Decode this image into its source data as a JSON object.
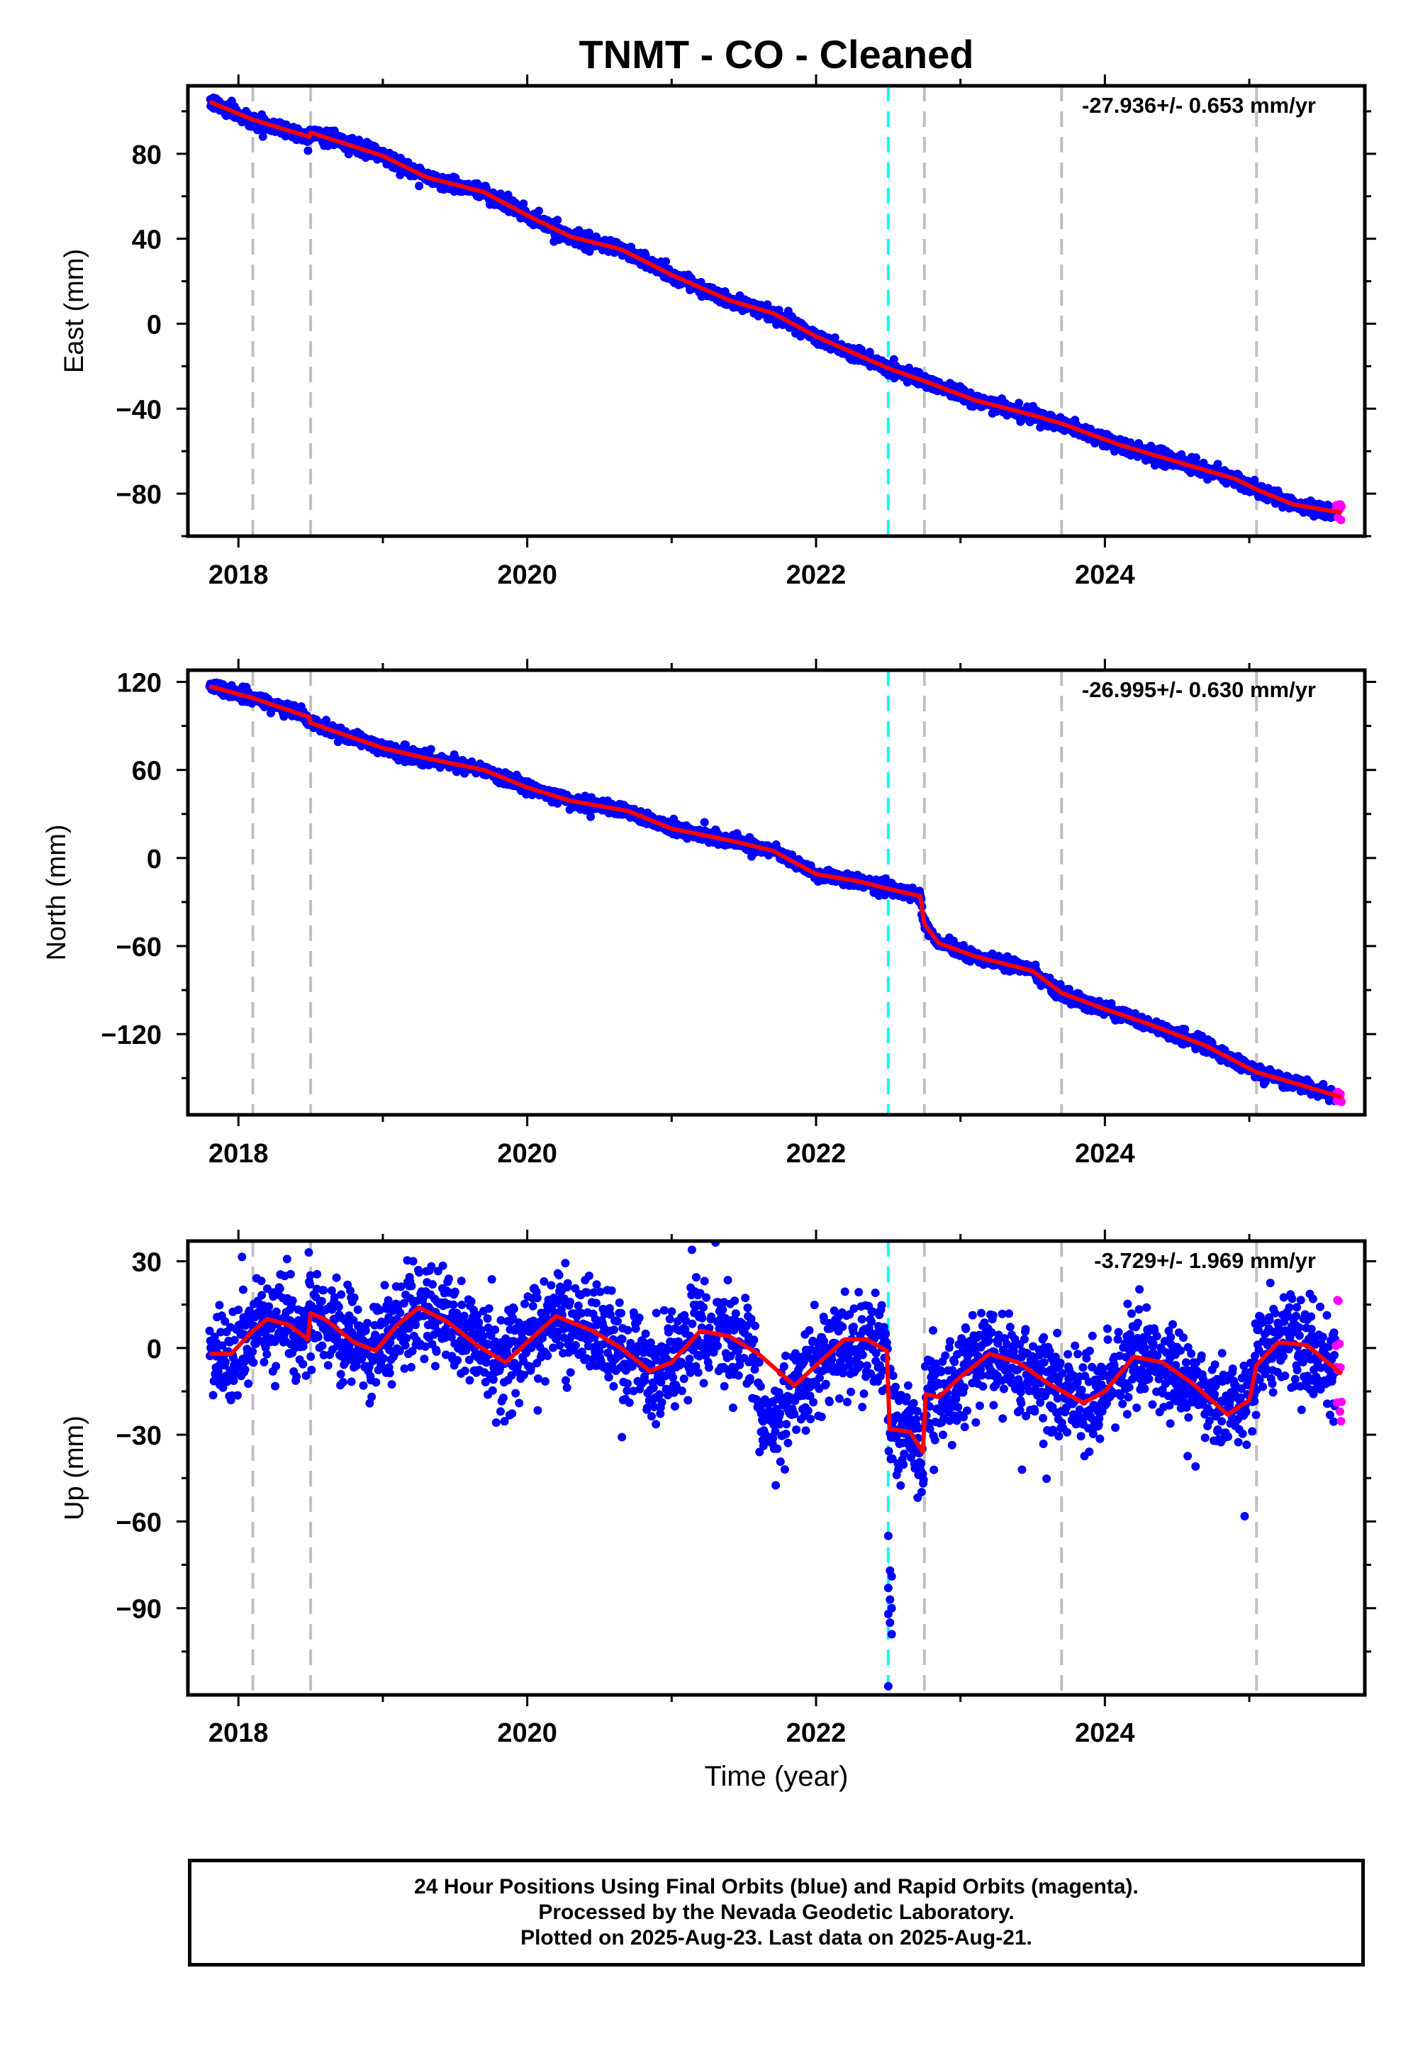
{
  "chart_data": {
    "type": "scatter",
    "title": "TNMT  - CO - Cleaned",
    "x_range": [
      2017.65,
      2025.8
    ],
    "x_ticks": [
      2018,
      2020,
      2022,
      2024
    ],
    "x_minor_ticks": [
      2017.0,
      2019.0,
      2021.0,
      2023.0,
      2025.0
    ],
    "x_tick_labels": [
      "2018",
      "2020",
      "2022",
      "2024"
    ],
    "xlabel": "Time (year)",
    "event_lines": {
      "gray_dashed": [
        2018.1,
        2018.5,
        2022.75,
        2023.7,
        2025.05
      ],
      "cyan_dashed": [
        2022.5
      ]
    },
    "colors": {
      "final_orbits": "#0000ff",
      "rapid_orbits": "#ff00ff",
      "model_fit": "#ff0000",
      "equipment_change": "#c0c0c0",
      "earthquake": "#00ffff",
      "frame": "#000000"
    },
    "data_span": {
      "start": 2017.8,
      "end_final": 2025.6,
      "end_rapid": 2025.64
    },
    "panels": [
      {
        "component": "east",
        "ylabel": "East (mm)",
        "y_range": [
          -100,
          112
        ],
        "y_ticks": [
          80,
          40,
          0,
          -40,
          -80
        ],
        "y_tick_labels": [
          "80",
          "40",
          "0",
          "−40",
          "−80"
        ],
        "y_minor_ticks": [
          100,
          60,
          20,
          -20,
          -60,
          -100
        ],
        "rate_label": "-27.936+/- 0.653 mm/yr",
        "scatter_sd": 1.6,
        "model": [
          [
            2017.8,
            104.5
          ],
          [
            2018.1,
            96
          ],
          [
            2018.49,
            88
          ],
          [
            2018.5,
            90
          ],
          [
            2019.0,
            79
          ],
          [
            2019.3,
            69
          ],
          [
            2019.7,
            62
          ],
          [
            2020.0,
            51
          ],
          [
            2020.3,
            41
          ],
          [
            2020.65,
            35
          ],
          [
            2021.0,
            23
          ],
          [
            2021.4,
            11
          ],
          [
            2021.7,
            5
          ],
          [
            2022.0,
            -6
          ],
          [
            2022.4,
            -18
          ],
          [
            2022.5,
            -21
          ],
          [
            2022.75,
            -27
          ],
          [
            2023.1,
            -36
          ],
          [
            2023.5,
            -43
          ],
          [
            2023.7,
            -47
          ],
          [
            2024.1,
            -57
          ],
          [
            2024.5,
            -65
          ],
          [
            2024.9,
            -73
          ],
          [
            2025.05,
            -78
          ],
          [
            2025.3,
            -85
          ],
          [
            2025.64,
            -89
          ]
        ]
      },
      {
        "component": "north",
        "ylabel": "North (mm)",
        "y_range": [
          -175,
          128
        ],
        "y_ticks": [
          120,
          60,
          0,
          -60,
          -120
        ],
        "y_tick_labels": [
          "120",
          "60",
          "0",
          "−60",
          "−120"
        ],
        "y_minor_ticks": [
          90,
          30,
          -30,
          -90,
          -150
        ],
        "rate_label": "-26.995+/- 0.630 mm/yr",
        "scatter_sd": 2.2,
        "model": [
          [
            2017.8,
            117
          ],
          [
            2018.1,
            109
          ],
          [
            2018.49,
            96
          ],
          [
            2018.5,
            92
          ],
          [
            2019.0,
            75
          ],
          [
            2019.3,
            68
          ],
          [
            2019.7,
            60
          ],
          [
            2020.0,
            48
          ],
          [
            2020.3,
            39
          ],
          [
            2020.7,
            32
          ],
          [
            2021.0,
            20
          ],
          [
            2021.4,
            12
          ],
          [
            2021.7,
            5
          ],
          [
            2022.0,
            -11
          ],
          [
            2022.3,
            -16
          ],
          [
            2022.5,
            -21
          ],
          [
            2022.72,
            -26
          ],
          [
            2022.75,
            -45
          ],
          [
            2022.85,
            -58
          ],
          [
            2023.1,
            -67
          ],
          [
            2023.5,
            -77
          ],
          [
            2023.7,
            -92
          ],
          [
            2024.0,
            -103
          ],
          [
            2024.3,
            -113
          ],
          [
            2024.7,
            -128
          ],
          [
            2025.05,
            -146
          ],
          [
            2025.3,
            -153
          ],
          [
            2025.64,
            -163
          ]
        ]
      },
      {
        "component": "up",
        "ylabel": "Up (mm)",
        "y_range": [
          -120,
          37
        ],
        "y_ticks": [
          30,
          0,
          -30,
          -60,
          -90
        ],
        "y_tick_labels": [
          "30",
          "0",
          "−30",
          "−60",
          "−90"
        ],
        "y_minor_ticks": [
          15,
          -15,
          -45,
          -75,
          -105
        ],
        "rate_label": "-3.729+/- 1.969 mm/yr",
        "scatter_sd": 8.0,
        "model": [
          [
            2017.8,
            -2
          ],
          [
            2017.95,
            -2
          ],
          [
            2018.1,
            6
          ],
          [
            2018.2,
            10
          ],
          [
            2018.35,
            8
          ],
          [
            2018.48,
            3
          ],
          [
            2018.5,
            12
          ],
          [
            2018.6,
            10
          ],
          [
            2018.8,
            2
          ],
          [
            2018.95,
            -1
          ],
          [
            2019.1,
            8
          ],
          [
            2019.25,
            14
          ],
          [
            2019.45,
            9
          ],
          [
            2019.65,
            1
          ],
          [
            2019.85,
            -5
          ],
          [
            2020.0,
            2
          ],
          [
            2020.2,
            11
          ],
          [
            2020.45,
            6
          ],
          [
            2020.65,
            0
          ],
          [
            2020.85,
            -8
          ],
          [
            2021.0,
            -5
          ],
          [
            2021.2,
            6
          ],
          [
            2021.4,
            4
          ],
          [
            2021.6,
            -2
          ],
          [
            2021.85,
            -13
          ],
          [
            2022.0,
            -6
          ],
          [
            2022.2,
            3
          ],
          [
            2022.35,
            3
          ],
          [
            2022.49,
            -1
          ],
          [
            2022.51,
            -28
          ],
          [
            2022.65,
            -29
          ],
          [
            2022.74,
            -36
          ],
          [
            2022.76,
            -16
          ],
          [
            2022.85,
            -17
          ],
          [
            2023.0,
            -10
          ],
          [
            2023.2,
            -2
          ],
          [
            2023.4,
            -5
          ],
          [
            2023.6,
            -12
          ],
          [
            2023.85,
            -19
          ],
          [
            2024.0,
            -15
          ],
          [
            2024.2,
            -3
          ],
          [
            2024.4,
            -5
          ],
          [
            2024.6,
            -12
          ],
          [
            2024.85,
            -23
          ],
          [
            2025.0,
            -18
          ],
          [
            2025.05,
            -6
          ],
          [
            2025.2,
            2
          ],
          [
            2025.4,
            1
          ],
          [
            2025.64,
            -9
          ]
        ]
      }
    ]
  },
  "footer": {
    "line1": "24 Hour Positions Using Final Orbits (blue) and Rapid Orbits (magenta).",
    "line2": "Processed by the Nevada Geodetic Laboratory.",
    "line3": "Plotted on 2025-Aug-23. Last data on 2025-Aug-21."
  }
}
